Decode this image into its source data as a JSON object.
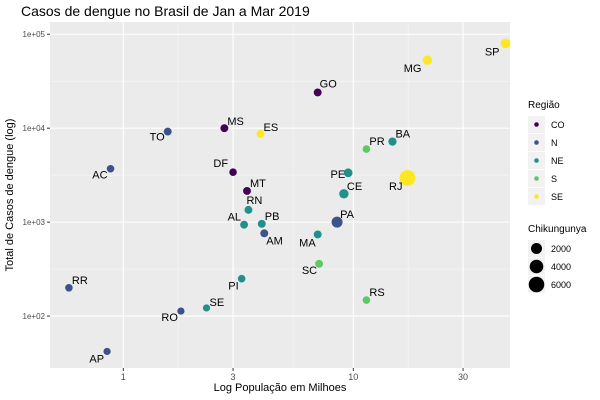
{
  "chart_data": {
    "type": "scatter",
    "title": "Casos de dengue no Brasil de Jan a Mar 2019",
    "xlabel": "Log População em Milhoes",
    "ylabel": "Total de Casos de dengue (log)",
    "x_scale": "log",
    "y_scale": "log",
    "xlim": [
      0.48,
      48
    ],
    "ylim": [
      28,
      135000
    ],
    "x_ticks": [
      {
        "value": 1,
        "label": "1"
      },
      {
        "value": 3,
        "label": "3"
      },
      {
        "value": 10,
        "label": "10"
      },
      {
        "value": 30,
        "label": "30"
      }
    ],
    "y_ticks": [
      {
        "value": 100,
        "label": "1e+02"
      },
      {
        "value": 1000,
        "label": "1e+03"
      },
      {
        "value": 10000,
        "label": "1e+04"
      },
      {
        "value": 100000,
        "label": "1e+05"
      }
    ],
    "grid": true,
    "color_legend": {
      "title": "Região",
      "placement": "right",
      "items": [
        {
          "key": "CO",
          "label": "CO",
          "color": "#440154"
        },
        {
          "key": "N",
          "label": "N",
          "color": "#3b528b"
        },
        {
          "key": "NE",
          "label": "NE",
          "color": "#21908c"
        },
        {
          "key": "S",
          "label": "S",
          "color": "#5dc963"
        },
        {
          "key": "SE",
          "label": "SE",
          "color": "#fde725"
        }
      ]
    },
    "size_legend": {
      "title": "Chikungunya",
      "placement": "right",
      "items": [
        {
          "value": 2000,
          "label": "2000"
        },
        {
          "value": 4000,
          "label": "4000"
        },
        {
          "value": 6000,
          "label": "6000"
        }
      ]
    },
    "points": [
      {
        "label": "SP",
        "region": "SE",
        "x": 45.9,
        "y": 80000,
        "chik": 1300
      },
      {
        "label": "MG",
        "region": "SE",
        "x": 21.0,
        "y": 53000,
        "chik": 1100
      },
      {
        "label": "GO",
        "region": "CO",
        "x": 7.0,
        "y": 24000,
        "chik": 500
      },
      {
        "label": "TO",
        "region": "N",
        "x": 1.56,
        "y": 9200,
        "chik": 500
      },
      {
        "label": "MS",
        "region": "CO",
        "x": 2.75,
        "y": 10000,
        "chik": 500
      },
      {
        "label": "ES",
        "region": "SE",
        "x": 3.95,
        "y": 8700,
        "chik": 500
      },
      {
        "label": "PR",
        "region": "S",
        "x": 11.4,
        "y": 6000,
        "chik": 400
      },
      {
        "label": "BA",
        "region": "NE",
        "x": 14.8,
        "y": 7200,
        "chik": 600
      },
      {
        "label": "AC",
        "region": "N",
        "x": 0.88,
        "y": 3700,
        "chik": 400
      },
      {
        "label": "DF",
        "region": "CO",
        "x": 3.0,
        "y": 3400,
        "chik": 400
      },
      {
        "label": "PE",
        "region": "NE",
        "x": 9.5,
        "y": 3350,
        "chik": 800
      },
      {
        "label": "RJ",
        "region": "SE",
        "x": 17.2,
        "y": 2950,
        "chik": 6500
      },
      {
        "label": "MT",
        "region": "CO",
        "x": 3.45,
        "y": 2150,
        "chik": 500
      },
      {
        "label": "CE",
        "region": "NE",
        "x": 9.1,
        "y": 2000,
        "chik": 1100
      },
      {
        "label": "RN",
        "region": "NE",
        "x": 3.5,
        "y": 1350,
        "chik": 500
      },
      {
        "label": "PA",
        "region": "N",
        "x": 8.5,
        "y": 1000,
        "chik": 2000
      },
      {
        "label": "AL",
        "region": "NE",
        "x": 3.35,
        "y": 940,
        "chik": 500
      },
      {
        "label": "PB",
        "region": "NE",
        "x": 4.0,
        "y": 960,
        "chik": 500
      },
      {
        "label": "AM",
        "region": "N",
        "x": 4.1,
        "y": 760,
        "chik": 500
      },
      {
        "label": "MA",
        "region": "NE",
        "x": 7.0,
        "y": 740,
        "chik": 500
      },
      {
        "label": "SC",
        "region": "S",
        "x": 7.1,
        "y": 360,
        "chik": 500
      },
      {
        "label": "PI",
        "region": "NE",
        "x": 3.27,
        "y": 250,
        "chik": 400
      },
      {
        "label": "RR",
        "region": "N",
        "x": 0.58,
        "y": 200,
        "chik": 400
      },
      {
        "label": "RS",
        "region": "S",
        "x": 11.4,
        "y": 148,
        "chik": 400
      },
      {
        "label": "SE",
        "region": "NE",
        "x": 2.3,
        "y": 122,
        "chik": 300
      },
      {
        "label": "RO",
        "region": "N",
        "x": 1.78,
        "y": 113,
        "chik": 300
      },
      {
        "label": "AP",
        "region": "N",
        "x": 0.85,
        "y": 42,
        "chik": 300
      }
    ]
  }
}
